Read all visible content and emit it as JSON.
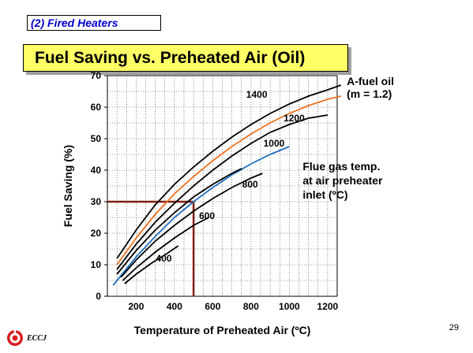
{
  "section_tag": "(2) Fired Heaters",
  "title": "Fuel Saving vs. Preheated Air (Oil)",
  "page_number": "29",
  "logo": {
    "icon": "eccj-logo-icon",
    "text": "ECCJ"
  },
  "colors": {
    "title_bg": "#ffff66",
    "orange": "#f07020",
    "blue": "#1f6fbf",
    "guide": "#7f1f10"
  },
  "chart_data": {
    "type": "line",
    "xlabel": "Temperature of Preheated Air (ºC)",
    "ylabel": "Fuel Saving (%)",
    "xlim": [
      50,
      1250
    ],
    "ylim": [
      0,
      70
    ],
    "x_ticks": [
      200,
      400,
      600,
      800,
      1000,
      1200
    ],
    "y_ticks": [
      0,
      10,
      20,
      30,
      40,
      50,
      60,
      70
    ],
    "grid": true,
    "series": [
      {
        "name": "1400",
        "color": "#000000",
        "points": [
          [
            100,
            12
          ],
          [
            200,
            21
          ],
          [
            300,
            29
          ],
          [
            400,
            35.5
          ],
          [
            500,
            41
          ],
          [
            600,
            46
          ],
          [
            700,
            50.5
          ],
          [
            800,
            54.5
          ],
          [
            900,
            58
          ],
          [
            1000,
            61
          ],
          [
            1100,
            63.5
          ],
          [
            1200,
            65.5
          ],
          [
            1270,
            67
          ]
        ]
      },
      {
        "name": "1200",
        "color": "#f07020",
        "points": [
          [
            100,
            10
          ],
          [
            200,
            18.5
          ],
          [
            300,
            26
          ],
          [
            400,
            32.5
          ],
          [
            500,
            38
          ],
          [
            600,
            43
          ],
          [
            700,
            47.5
          ],
          [
            800,
            51.5
          ],
          [
            900,
            55
          ],
          [
            1000,
            58
          ],
          [
            1100,
            60.5
          ],
          [
            1200,
            62.5
          ],
          [
            1270,
            63.5
          ]
        ]
      },
      {
        "name": "",
        "color": "#000000",
        "points": [
          [
            100,
            8.5
          ],
          [
            200,
            16.5
          ],
          [
            300,
            23.5
          ],
          [
            400,
            29.5
          ],
          [
            500,
            35
          ],
          [
            600,
            40
          ],
          [
            700,
            44.5
          ],
          [
            800,
            48.5
          ],
          [
            900,
            52
          ],
          [
            1000,
            54.5
          ],
          [
            1100,
            56.5
          ],
          [
            1200,
            57.5
          ]
        ]
      },
      {
        "name": "1000",
        "color": "#1f6fbf",
        "points": [
          [
            80,
            3.5
          ],
          [
            200,
            12.5
          ],
          [
            300,
            19
          ],
          [
            400,
            25
          ],
          [
            500,
            30
          ],
          [
            600,
            34.5
          ],
          [
            700,
            38.5
          ],
          [
            800,
            42
          ],
          [
            900,
            45
          ],
          [
            1000,
            47.5
          ]
        ]
      },
      {
        "name": "",
        "color": "#000000",
        "points": [
          [
            100,
            7
          ],
          [
            200,
            14.5
          ],
          [
            300,
            21
          ],
          [
            400,
            26.5
          ],
          [
            500,
            31.5
          ],
          [
            600,
            35.5
          ],
          [
            700,
            39
          ],
          [
            750,
            40.5
          ]
        ]
      },
      {
        "name": "800",
        "color": "#000000",
        "points": [
          [
            120,
            6
          ],
          [
            200,
            11.5
          ],
          [
            300,
            17.5
          ],
          [
            400,
            22.5
          ],
          [
            500,
            27
          ],
          [
            600,
            31
          ],
          [
            700,
            34.5
          ],
          [
            800,
            37.5
          ],
          [
            860,
            39
          ]
        ]
      },
      {
        "name": "600",
        "color": "#000000",
        "points": [
          [
            130,
            5
          ],
          [
            200,
            9
          ],
          [
            300,
            14
          ],
          [
            400,
            18.5
          ],
          [
            500,
            22.5
          ],
          [
            580,
            25
          ]
        ]
      },
      {
        "name": "400",
        "color": "#000000",
        "points": [
          [
            140,
            4
          ],
          [
            200,
            7
          ],
          [
            280,
            10.5
          ],
          [
            360,
            13.5
          ],
          [
            420,
            16
          ]
        ]
      }
    ],
    "guide_lines": {
      "color": "#7f1f10",
      "vertical": {
        "x": 500,
        "y_from": 0,
        "y_to": 30
      },
      "horizontal": {
        "y": 30,
        "x_from": 50,
        "x_to": 500
      }
    },
    "annotations": [
      {
        "text": "A-fuel oil",
        "anchor_x": 1300,
        "anchor_y": 67
      },
      {
        "text": "(m = 1.2)",
        "anchor_x": 1300,
        "anchor_y": 63
      },
      {
        "text": "Flue gas temp.",
        "anchor_x": 1070,
        "anchor_y": 40
      },
      {
        "text": "at air preheater",
        "anchor_x": 1070,
        "anchor_y": 35.5
      },
      {
        "text": "inlet (ºC)",
        "anchor_x": 1070,
        "anchor_y": 31
      }
    ],
    "curve_labels": [
      {
        "text": "1400",
        "x": 830,
        "y": 63
      },
      {
        "text": "1200",
        "x": 1025,
        "y": 55.5
      },
      {
        "text": "1000",
        "x": 920,
        "y": 47.5
      },
      {
        "text": "800",
        "x": 795,
        "y": 34.5
      },
      {
        "text": "600",
        "x": 570,
        "y": 24.5
      },
      {
        "text": "400",
        "x": 345,
        "y": 11
      }
    ]
  }
}
